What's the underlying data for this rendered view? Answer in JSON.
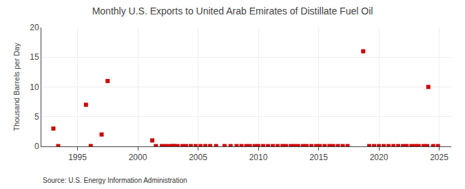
{
  "chart_data": {
    "type": "scatter",
    "title": "Monthly U.S. Exports to United Arab Emirates of Distillate Fuel Oil",
    "ylabel": "Thousand Barrels per Day",
    "annotations": [
      "Source: U.S. Energy Information Administration"
    ],
    "color": "#cc0000",
    "marker": "square",
    "grid": true,
    "xlim": [
      1992.0,
      2026.0
    ],
    "xticks": [
      1995,
      2000,
      2005,
      2010,
      2015,
      2020,
      2025
    ],
    "ylim": [
      0,
      20
    ],
    "yticks": [
      0,
      5,
      10,
      15,
      20
    ],
    "x": [
      1993.0,
      1993.4,
      1995.7,
      1996.1,
      1997.0,
      1997.5,
      2001.2,
      2001.5,
      2002.0,
      2002.3,
      2002.6,
      2002.9,
      2003.0,
      2003.3,
      2003.7,
      2004.0,
      2004.4,
      2004.8,
      2005.2,
      2005.6,
      2006.0,
      2006.5,
      2007.2,
      2007.7,
      2008.2,
      2008.6,
      2009.0,
      2009.3,
      2009.7,
      2010.0,
      2010.4,
      2010.8,
      2011.2,
      2011.6,
      2012.0,
      2012.3,
      2012.7,
      2013.0,
      2013.3,
      2013.7,
      2014.0,
      2014.4,
      2014.8,
      2015.1,
      2015.5,
      2015.9,
      2016.2,
      2016.6,
      2017.0,
      2017.4,
      2018.7,
      2019.2,
      2019.6,
      2020.0,
      2020.4,
      2020.8,
      2021.2,
      2021.6,
      2022.0,
      2022.3,
      2022.7,
      2023.0,
      2023.3,
      2023.7,
      2024.0,
      2024.1,
      2024.5,
      2024.9
    ],
    "values": [
      3.0,
      0.05,
      7.0,
      0.05,
      2.0,
      11.0,
      1.0,
      0.05,
      0.05,
      0.05,
      0.05,
      0.05,
      0.05,
      0.05,
      0.05,
      0.05,
      0.05,
      0.05,
      0.05,
      0.05,
      0.05,
      0.05,
      0.05,
      0.05,
      0.05,
      0.05,
      0.05,
      0.05,
      0.05,
      0.05,
      0.05,
      0.05,
      0.05,
      0.05,
      0.05,
      0.05,
      0.05,
      0.05,
      0.05,
      0.05,
      0.05,
      0.05,
      0.05,
      0.05,
      0.05,
      0.05,
      0.05,
      0.05,
      0.05,
      0.05,
      16.0,
      0.05,
      0.05,
      0.05,
      0.05,
      0.05,
      0.05,
      0.05,
      0.05,
      0.05,
      0.05,
      0.05,
      0.05,
      0.05,
      0.05,
      10.0,
      0.05,
      0.05
    ]
  }
}
